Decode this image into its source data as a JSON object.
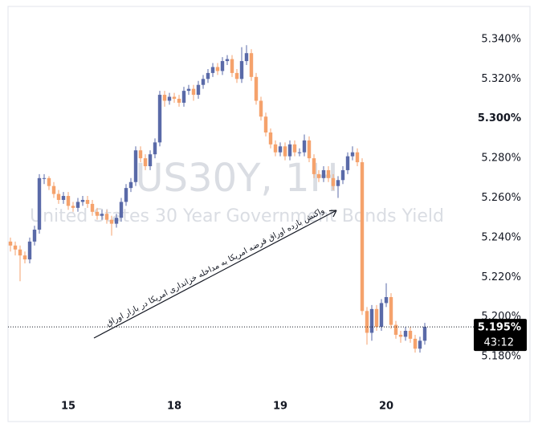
{
  "chart_data": {
    "type": "candlestick",
    "watermark_title": "US30Y, 1H",
    "watermark_subtitle": "United States 30 Year Government Bonds Yield",
    "annotation": "واکنش بازده اوراق قرضه امریکا به مداخله خزانداری امریکا در بازار اوراق",
    "up_color": "#5a6aa8",
    "down_color": "#f5a26c",
    "x": [
      0,
      1,
      2,
      3,
      4,
      5,
      6,
      7,
      8,
      9,
      10,
      11,
      12,
      13,
      14,
      15,
      16,
      17,
      18,
      19,
      20,
      21,
      22,
      23,
      24,
      25,
      26,
      27,
      28,
      29,
      30,
      31,
      32,
      33,
      34,
      35,
      36,
      37,
      38,
      39,
      40,
      41,
      42,
      43,
      44,
      45,
      46,
      47,
      48,
      49,
      50,
      51,
      52,
      53,
      54,
      55,
      56,
      57,
      58,
      59,
      60,
      61,
      62,
      63,
      64,
      65,
      66,
      67,
      68,
      69,
      70,
      71,
      72,
      73,
      74,
      75,
      76,
      77,
      78,
      79,
      80,
      81,
      82,
      83,
      84,
      85,
      86
    ],
    "open": [
      5.238,
      5.236,
      5.234,
      5.231,
      5.229,
      5.238,
      5.244,
      5.27,
      5.27,
      5.266,
      5.262,
      5.259,
      5.261,
      5.256,
      5.255,
      5.258,
      5.259,
      5.257,
      5.253,
      5.251,
      5.252,
      5.249,
      5.247,
      5.25,
      5.258,
      5.265,
      5.268,
      5.284,
      5.28,
      5.276,
      5.282,
      5.288,
      5.312,
      5.309,
      5.311,
      5.31,
      5.308,
      5.314,
      5.315,
      5.312,
      5.317,
      5.32,
      5.323,
      5.326,
      5.324,
      5.329,
      5.33,
      5.323,
      5.32,
      5.329,
      5.333,
      5.321,
      5.309,
      5.301,
      5.293,
      5.287,
      5.283,
      5.286,
      5.281,
      5.287,
      5.283,
      5.283,
      5.289,
      5.28,
      5.272,
      5.27,
      5.274,
      5.27,
      5.266,
      5.269,
      5.274,
      5.281,
      5.283,
      5.278,
      5.203,
      5.192,
      5.204,
      5.195,
      5.207,
      5.21,
      5.196,
      5.191,
      5.19,
      5.193,
      5.189,
      5.184,
      5.188
    ],
    "high": [
      5.24,
      5.238,
      5.236,
      5.233,
      5.24,
      5.246,
      5.272,
      5.272,
      5.271,
      5.268,
      5.264,
      5.263,
      5.263,
      5.258,
      5.26,
      5.261,
      5.261,
      5.259,
      5.255,
      5.254,
      5.254,
      5.251,
      5.252,
      5.26,
      5.267,
      5.27,
      5.286,
      5.286,
      5.282,
      5.284,
      5.29,
      5.314,
      5.314,
      5.313,
      5.313,
      5.312,
      5.316,
      5.317,
      5.317,
      5.319,
      5.322,
      5.325,
      5.328,
      5.328,
      5.331,
      5.332,
      5.332,
      5.325,
      5.336,
      5.337,
      5.335,
      5.323,
      5.311,
      5.303,
      5.295,
      5.289,
      5.288,
      5.288,
      5.289,
      5.289,
      5.285,
      5.292,
      5.291,
      5.282,
      5.274,
      5.276,
      5.276,
      5.272,
      5.271,
      5.276,
      5.283,
      5.286,
      5.285,
      5.28,
      5.205,
      5.206,
      5.206,
      5.209,
      5.217,
      5.212,
      5.198,
      5.193,
      5.195,
      5.195,
      5.191,
      5.19,
      5.197
    ],
    "low": [
      5.233,
      5.231,
      5.218,
      5.227,
      5.227,
      5.236,
      5.242,
      5.267,
      5.264,
      5.26,
      5.257,
      5.257,
      5.254,
      5.253,
      5.253,
      5.256,
      5.255,
      5.251,
      5.249,
      5.249,
      5.247,
      5.241,
      5.245,
      5.248,
      5.256,
      5.263,
      5.266,
      5.278,
      5.274,
      5.274,
      5.28,
      5.286,
      5.306,
      5.307,
      5.308,
      5.306,
      5.306,
      5.312,
      5.309,
      5.31,
      5.315,
      5.318,
      5.321,
      5.322,
      5.322,
      5.327,
      5.321,
      5.318,
      5.318,
      5.327,
      5.319,
      5.307,
      5.299,
      5.291,
      5.285,
      5.281,
      5.281,
      5.279,
      5.279,
      5.281,
      5.281,
      5.281,
      5.278,
      5.27,
      5.268,
      5.268,
      5.268,
      5.264,
      5.26,
      5.267,
      5.272,
      5.279,
      5.276,
      5.201,
      5.186,
      5.188,
      5.193,
      5.193,
      5.205,
      5.194,
      5.189,
      5.187,
      5.188,
      5.187,
      5.182,
      5.182,
      5.186
    ],
    "close": [
      5.236,
      5.234,
      5.231,
      5.229,
      5.238,
      5.244,
      5.27,
      5.27,
      5.266,
      5.262,
      5.259,
      5.261,
      5.256,
      5.255,
      5.258,
      5.259,
      5.257,
      5.253,
      5.251,
      5.252,
      5.249,
      5.247,
      5.25,
      5.258,
      5.265,
      5.268,
      5.284,
      5.28,
      5.276,
      5.282,
      5.288,
      5.312,
      5.309,
      5.311,
      5.31,
      5.308,
      5.314,
      5.315,
      5.312,
      5.317,
      5.32,
      5.323,
      5.326,
      5.324,
      5.329,
      5.33,
      5.323,
      5.32,
      5.329,
      5.333,
      5.321,
      5.309,
      5.301,
      5.293,
      5.287,
      5.283,
      5.286,
      5.281,
      5.287,
      5.283,
      5.283,
      5.289,
      5.28,
      5.272,
      5.27,
      5.274,
      5.27,
      5.266,
      5.269,
      5.274,
      5.281,
      5.283,
      5.278,
      5.203,
      5.192,
      5.204,
      5.195,
      5.207,
      5.21,
      5.196,
      5.191,
      5.19,
      5.193,
      5.189,
      5.184,
      5.188,
      5.195
    ],
    "xlim": [
      -0.5,
      95.5
    ],
    "xticks": [
      {
        "value": 12,
        "label": "15"
      },
      {
        "value": 34,
        "label": "18"
      },
      {
        "value": 56,
        "label": "19"
      },
      {
        "value": 78,
        "label": "20"
      }
    ],
    "ylim": [
      5.1594,
      5.3517
    ],
    "yticks": [
      {
        "value": 5.18,
        "label": "5.180%"
      },
      {
        "value": 5.2,
        "label": "5.200%"
      },
      {
        "value": 5.22,
        "label": "5.220%"
      },
      {
        "value": 5.24,
        "label": "5.240%"
      },
      {
        "value": 5.26,
        "label": "5.260%"
      },
      {
        "value": 5.28,
        "label": "5.280%"
      },
      {
        "value": 5.3,
        "label": "5.300%"
      },
      {
        "value": 5.32,
        "label": "5.320%"
      },
      {
        "value": 5.34,
        "label": "5.340%"
      }
    ],
    "last_price": {
      "value": 5.195,
      "label": "5.195%"
    },
    "countdown": "43:12"
  }
}
